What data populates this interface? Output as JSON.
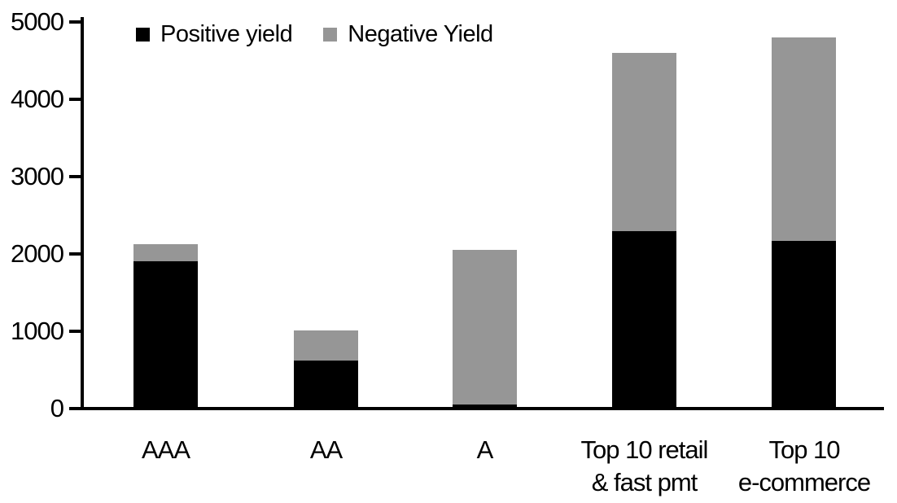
{
  "chart_data": {
    "type": "bar",
    "subtype": "stacked-vertical",
    "title": "",
    "xlabel": "",
    "ylabel": "",
    "categories": [
      "AAA",
      "AA",
      "A",
      "Top 10 retail & fast pmt",
      "Top 10 e-commerce"
    ],
    "category_label_lines": [
      [
        "AAA"
      ],
      [
        "AA"
      ],
      [
        "A"
      ],
      [
        "Top 10 retail",
        "& fast pmt"
      ],
      [
        "Top 10",
        "e-commerce"
      ]
    ],
    "series": [
      {
        "name": "Positive yield",
        "color": "#000000",
        "values": [
          1900,
          620,
          50,
          2300,
          2170
        ]
      },
      {
        "name": "Negative Yield",
        "color": "#969696",
        "values": [
          230,
          390,
          2000,
          2300,
          2630
        ]
      }
    ],
    "stacked_totals": [
      2130,
      1010,
      2050,
      4600,
      4800
    ],
    "ylim": [
      0,
      5000
    ],
    "yticks": [
      0,
      1000,
      2000,
      3000,
      4000,
      5000
    ],
    "grid": false,
    "legend_position": "top-left",
    "colors": {
      "positive_yield": "#000000",
      "negative_yield": "#969696",
      "axis": "#000000",
      "background": "#ffffff",
      "text": "#000000"
    }
  }
}
